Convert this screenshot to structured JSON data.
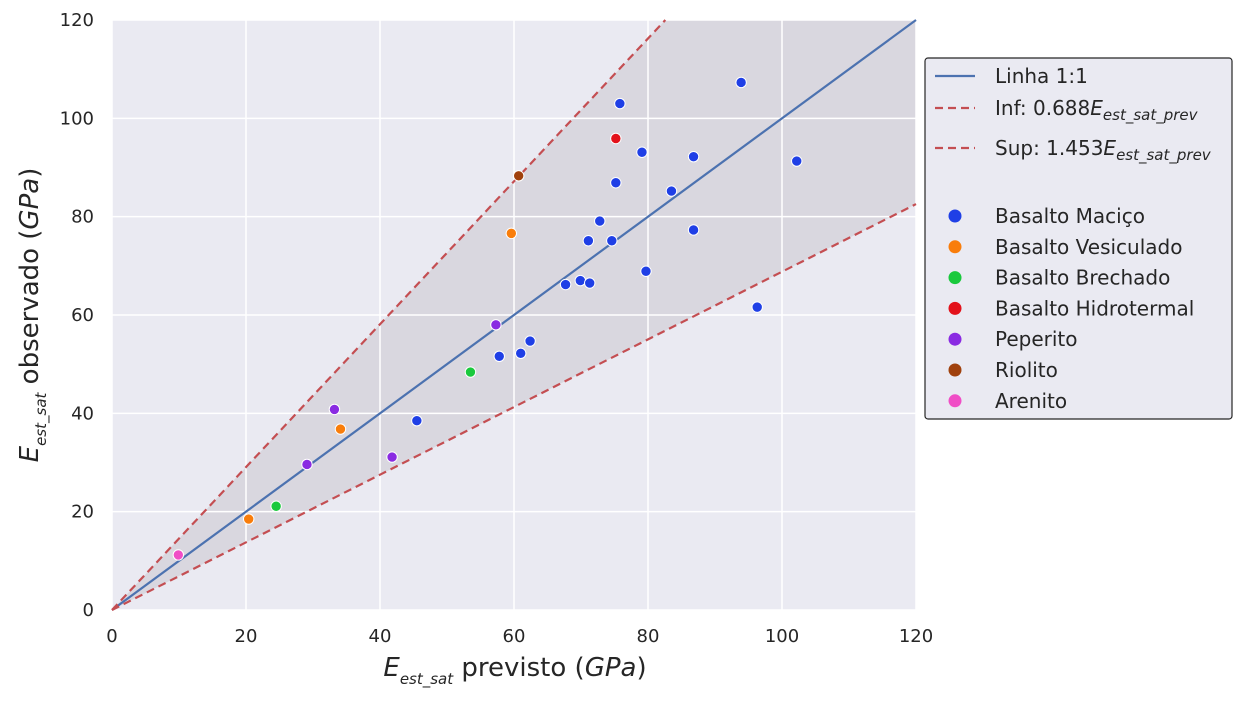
{
  "chart_data": {
    "type": "scatter",
    "xlabel": {
      "main": "E",
      "sub": "est_sat",
      "rest": " previsto (",
      "unit": "GPa",
      "close": ")"
    },
    "ylabel": {
      "main": "E",
      "sub": "est_sat",
      "rest": " observado (",
      "unit": "GPa",
      "close": ")"
    },
    "xlim": [
      0,
      120
    ],
    "ylim": [
      0,
      120
    ],
    "xticks": [
      "0",
      "20",
      "40",
      "60",
      "80",
      "100",
      "120"
    ],
    "yticks": [
      "0",
      "20",
      "40",
      "60",
      "80",
      "100",
      "120"
    ],
    "grid": true,
    "legend_position": "outside-right",
    "colors": {
      "plot_bg": "#eaeaf2",
      "band": "#d6d4dc",
      "grid": "#ffffff",
      "identity_line": "#4c72b0",
      "bound_lines": "#c44e52"
    },
    "lines": {
      "identity": {
        "label": "Linha 1:1",
        "slope": 1.0
      },
      "lower": {
        "prefix": "Inf: 0.688",
        "main": "E",
        "sub": "est_sat_prev",
        "slope": 0.688
      },
      "upper": {
        "prefix": "Sup: 1.453",
        "main": "E",
        "sub": "est_sat_prev",
        "slope": 1.453
      }
    },
    "series": [
      {
        "name": "Basalto Maciço",
        "color": "#1f3fe6",
        "points": [
          [
            45.5,
            38.5
          ],
          [
            57.8,
            51.6
          ],
          [
            61.0,
            52.2
          ],
          [
            62.4,
            54.7
          ],
          [
            67.7,
            66.2
          ],
          [
            69.9,
            67.0
          ],
          [
            71.3,
            66.5
          ],
          [
            71.1,
            75.1
          ],
          [
            72.8,
            79.1
          ],
          [
            74.6,
            75.1
          ],
          [
            75.2,
            86.9
          ],
          [
            75.8,
            103.0
          ],
          [
            79.1,
            93.1
          ],
          [
            79.7,
            68.9
          ],
          [
            83.5,
            85.2
          ],
          [
            86.8,
            92.2
          ],
          [
            86.8,
            77.3
          ],
          [
            93.9,
            107.3
          ],
          [
            96.3,
            61.6
          ],
          [
            102.2,
            91.3
          ]
        ]
      },
      {
        "name": "Basalto Vesiculado",
        "color": "#f97d0b",
        "points": [
          [
            20.4,
            18.5
          ],
          [
            34.1,
            36.8
          ],
          [
            59.6,
            76.6
          ]
        ]
      },
      {
        "name": "Basalto Brechado",
        "color": "#1ac93d",
        "points": [
          [
            24.5,
            21.1
          ],
          [
            53.5,
            48.4
          ]
        ]
      },
      {
        "name": "Basalto Hidrotermal",
        "color": "#e3121b",
        "points": [
          [
            75.2,
            95.9
          ]
        ]
      },
      {
        "name": "Peperito",
        "color": "#8a2be2",
        "points": [
          [
            29.1,
            29.6
          ],
          [
            33.2,
            40.8
          ],
          [
            41.8,
            31.1
          ],
          [
            57.3,
            58.0
          ]
        ]
      },
      {
        "name": "Riolito",
        "color": "#a0410d",
        "points": [
          [
            60.7,
            88.3
          ]
        ]
      },
      {
        "name": "Arenito",
        "color": "#f04ec6",
        "points": [
          [
            9.9,
            11.2
          ]
        ]
      }
    ]
  }
}
